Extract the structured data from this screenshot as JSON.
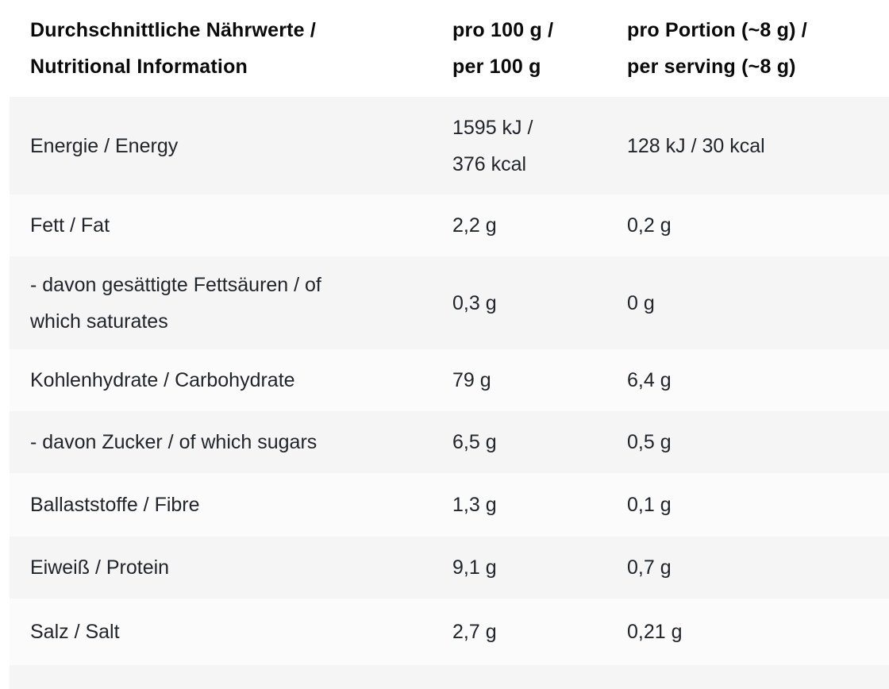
{
  "header": {
    "nutrient_line1": "Durchschnittliche Nährwerte /",
    "nutrient_line2": "Nutritional Information",
    "per100_line1": "pro 100 g /",
    "per100_line2": "per 100 g",
    "portion_line1": "pro Portion (~8 g) /",
    "portion_line2": "per serving (~8 g)"
  },
  "rows": [
    {
      "label": "Energie / Energy",
      "per100_line1": "1595 kJ /",
      "per100_line2": "376 kcal",
      "portion": "128 kJ / 30 kcal"
    },
    {
      "label": "Fett / Fat",
      "per100": "2,2 g",
      "portion": "0,2 g"
    },
    {
      "label_line1": "- davon gesättigte Fettsäuren / of",
      "label_line2": "which saturates",
      "per100": "0,3 g",
      "portion": "0 g"
    },
    {
      "label": "Kohlenhydrate / Carbohydrate",
      "per100": "79 g",
      "portion": "6,4 g"
    },
    {
      "label": "- davon Zucker / of which sugars",
      "per100": "6,5 g",
      "portion": "0,5 g"
    },
    {
      "label": "Ballaststoffe / Fibre",
      "per100": "1,3 g",
      "portion": "0,1 g"
    },
    {
      "label": "Eiweiß / Protein",
      "per100": "9,1 g",
      "portion": "0,7 g"
    },
    {
      "label": "Salz / Salt",
      "per100": "2,7 g",
      "portion": "0,21 g"
    }
  ],
  "colors": {
    "row_shade": "#f5f5f6",
    "row_light": "#fbfbfb",
    "header_text": "#0a0a0a",
    "body_text": "#212529"
  },
  "chart_data": {
    "type": "table",
    "title": "Durchschnittliche Nährwerte / Nutritional Information",
    "columns": [
      "Durchschnittliche Nährwerte / Nutritional Information",
      "pro 100 g / per 100 g",
      "pro Portion (~8 g) / per serving (~8 g)"
    ],
    "rows": [
      [
        "Energie / Energy",
        "1595 kJ / 376 kcal",
        "128 kJ / 30 kcal"
      ],
      [
        "Fett / Fat",
        "2,2 g",
        "0,2 g"
      ],
      [
        "- davon gesättigte Fettsäuren / of which saturates",
        "0,3 g",
        "0 g"
      ],
      [
        "Kohlenhydrate / Carbohydrate",
        "79 g",
        "6,4 g"
      ],
      [
        "- davon Zucker / of which sugars",
        "6,5 g",
        "0,5 g"
      ],
      [
        "Ballaststoffe / Fibre",
        "1,3 g",
        "0,1 g"
      ],
      [
        "Eiweiß / Protein",
        "9,1 g",
        "0,7 g"
      ],
      [
        "Salz / Salt",
        "2,7 g",
        "0,21 g"
      ]
    ]
  }
}
